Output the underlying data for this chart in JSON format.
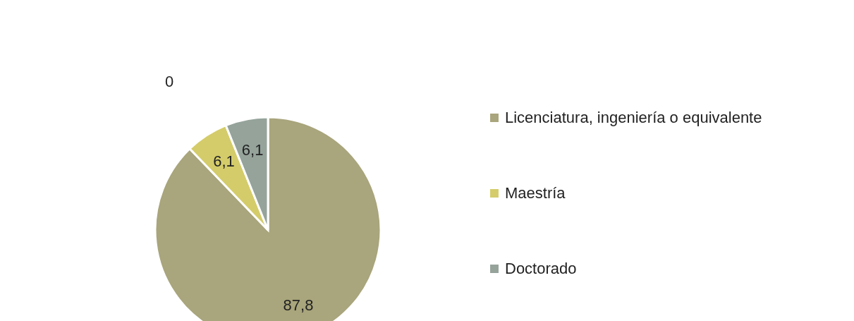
{
  "chart_data": {
    "type": "pie",
    "categories": [
      "Licenciatura, ingeniería o equivalente",
      "Maestría",
      "Doctorado"
    ],
    "values": [
      87.8,
      6.1,
      6.1
    ],
    "colors": [
      "#a9a57c",
      "#d4cc6a",
      "#95a39b"
    ],
    "value_labels": [
      "87,8",
      "6,1",
      "6,1"
    ],
    "legend": "right",
    "annotations": [
      "0"
    ]
  }
}
